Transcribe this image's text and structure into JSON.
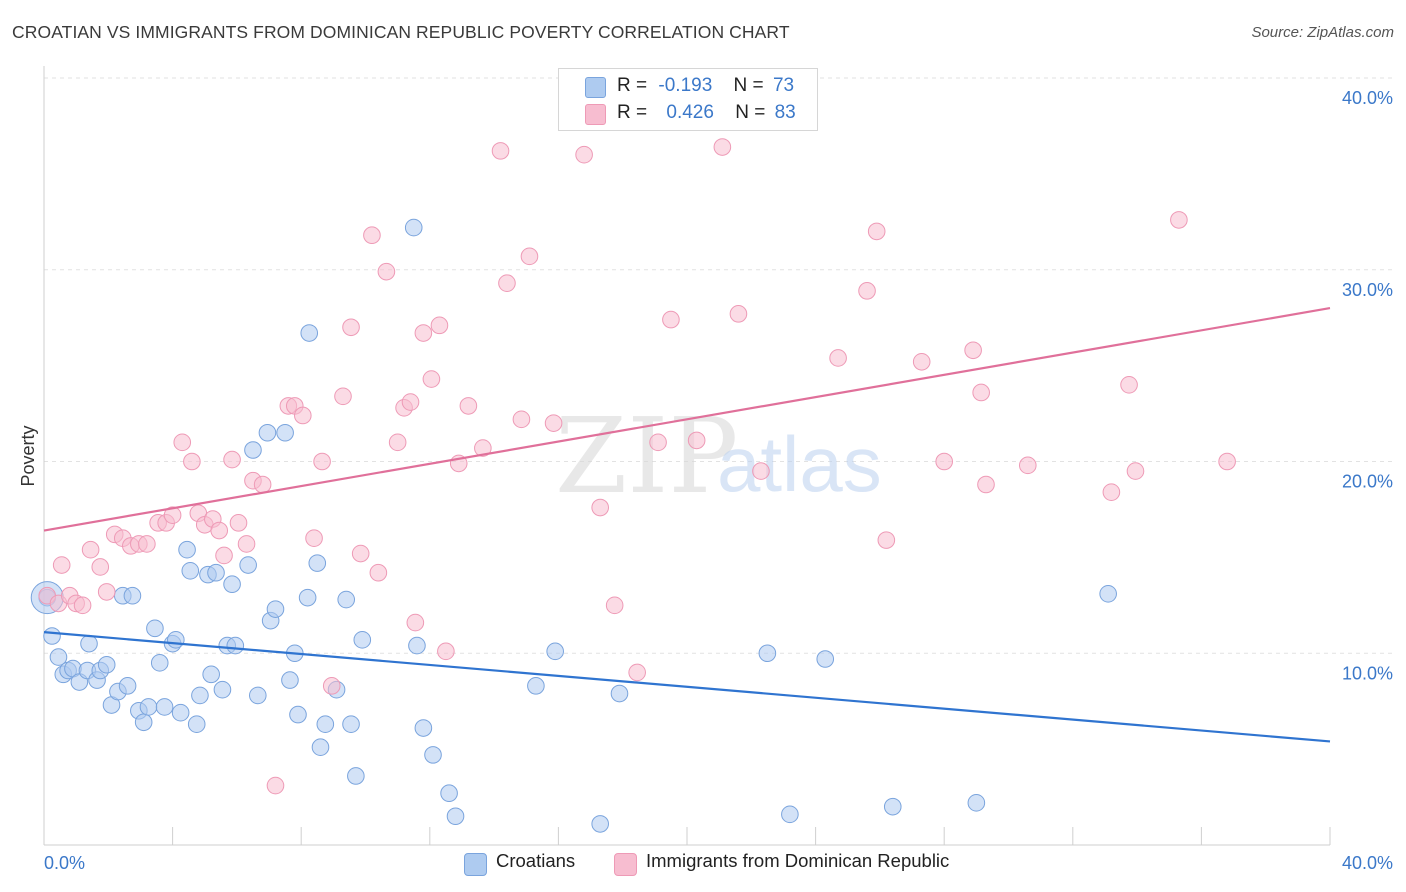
{
  "title": "CROATIAN VS IMMIGRANTS FROM DOMINICAN REPUBLIC POVERTY CORRELATION CHART",
  "source": "Source: ZipAtlas.com",
  "watermark": {
    "zip": "ZIP",
    "atlas": "atlas"
  },
  "legend": {
    "rows": [
      {
        "r_label": "R =",
        "r_value": "-0.193",
        "n_label": "N =",
        "n_value": "73"
      },
      {
        "r_label": "R =",
        "r_value": "0.426",
        "n_label": "N =",
        "n_value": "83"
      }
    ]
  },
  "bottom_legend": {
    "series1": "Croatians",
    "series2": "Immigrants from Dominican Republic"
  },
  "colors": {
    "blue_fill": "#aecbf0",
    "blue_stroke": "#7aa4dd",
    "blue_line": "#2f74d0",
    "pink_fill": "#f7bdd0",
    "pink_stroke": "#ee9ab6",
    "pink_line": "#e0709a",
    "axis_text": "#3b78c9",
    "grid": "#e2e2e2"
  },
  "chart_data": {
    "type": "scatter",
    "title": "CROATIAN VS IMMIGRANTS FROM DOMINICAN REPUBLIC POVERTY CORRELATION CHART",
    "xlabel": "",
    "ylabel": "Poverty",
    "xlim": [
      0,
      40
    ],
    "ylim": [
      0,
      40
    ],
    "x_tick_labels": [
      "0.0%",
      "40.0%"
    ],
    "y_ticks": [
      10,
      20,
      30,
      40
    ],
    "y_tick_labels": [
      "10.0%",
      "20.0%",
      "30.0%",
      "40.0%"
    ],
    "grid": "horizontal dashed",
    "legend_position": "top-center",
    "series": [
      {
        "name": "Croatians",
        "r": -0.193,
        "n": 73,
        "trend": {
          "x": [
            0,
            40
          ],
          "y": [
            11.1,
            5.4
          ]
        },
        "points": [
          [
            0.1,
            12.9
          ],
          [
            0.25,
            10.9
          ],
          [
            0.45,
            9.8
          ],
          [
            0.6,
            8.9
          ],
          [
            0.75,
            9.1
          ],
          [
            0.9,
            9.2
          ],
          [
            1.1,
            8.5
          ],
          [
            1.35,
            9.1
          ],
          [
            1.4,
            10.5
          ],
          [
            1.65,
            8.6
          ],
          [
            1.75,
            9.1
          ],
          [
            1.95,
            9.4
          ],
          [
            2.1,
            7.3
          ],
          [
            2.3,
            8.0
          ],
          [
            2.45,
            13.0
          ],
          [
            2.6,
            8.3
          ],
          [
            2.75,
            13.0
          ],
          [
            2.95,
            7.0
          ],
          [
            3.1,
            6.4
          ],
          [
            3.25,
            7.2
          ],
          [
            3.45,
            11.3
          ],
          [
            3.6,
            9.5
          ],
          [
            3.75,
            7.2
          ],
          [
            4.0,
            10.5
          ],
          [
            4.1,
            10.7
          ],
          [
            4.25,
            6.9
          ],
          [
            4.45,
            15.4
          ],
          [
            4.55,
            14.3
          ],
          [
            4.75,
            6.3
          ],
          [
            4.85,
            7.8
          ],
          [
            5.1,
            14.1
          ],
          [
            5.2,
            8.9
          ],
          [
            5.35,
            14.2
          ],
          [
            5.55,
            8.1
          ],
          [
            5.7,
            10.4
          ],
          [
            5.85,
            13.6
          ],
          [
            5.95,
            10.4
          ],
          [
            6.35,
            14.6
          ],
          [
            6.5,
            20.6
          ],
          [
            6.65,
            7.8
          ],
          [
            6.95,
            21.5
          ],
          [
            7.05,
            11.7
          ],
          [
            7.2,
            12.3
          ],
          [
            7.5,
            21.5
          ],
          [
            7.65,
            8.6
          ],
          [
            7.8,
            10.0
          ],
          [
            7.9,
            6.8
          ],
          [
            8.2,
            12.9
          ],
          [
            8.25,
            26.7
          ],
          [
            8.5,
            14.7
          ],
          [
            8.6,
            5.1
          ],
          [
            8.75,
            6.3
          ],
          [
            9.1,
            8.1
          ],
          [
            9.4,
            12.8
          ],
          [
            9.55,
            6.3
          ],
          [
            9.7,
            3.6
          ],
          [
            9.9,
            10.7
          ],
          [
            11.5,
            32.2
          ],
          [
            11.6,
            10.4
          ],
          [
            11.8,
            6.1
          ],
          [
            12.1,
            4.7
          ],
          [
            12.6,
            2.7
          ],
          [
            12.8,
            1.5
          ],
          [
            15.3,
            8.3
          ],
          [
            15.9,
            10.1
          ],
          [
            17.3,
            1.1
          ],
          [
            17.9,
            7.9
          ],
          [
            22.5,
            10.0
          ],
          [
            23.2,
            1.6
          ],
          [
            24.3,
            9.7
          ],
          [
            26.4,
            2.0
          ],
          [
            29.0,
            2.2
          ],
          [
            33.1,
            13.1
          ]
        ]
      },
      {
        "name": "Immigrants from Dominican Republic",
        "r": 0.426,
        "n": 83,
        "trend": {
          "x": [
            0,
            40
          ],
          "y": [
            16.4,
            28.0
          ]
        },
        "points": [
          [
            0.1,
            13.0
          ],
          [
            0.45,
            12.6
          ],
          [
            0.8,
            13.0
          ],
          [
            1.0,
            12.6
          ],
          [
            1.2,
            12.5
          ],
          [
            1.45,
            15.4
          ],
          [
            1.75,
            14.5
          ],
          [
            1.95,
            13.2
          ],
          [
            2.2,
            16.2
          ],
          [
            2.45,
            16.0
          ],
          [
            2.7,
            15.6
          ],
          [
            2.95,
            15.7
          ],
          [
            3.2,
            15.7
          ],
          [
            3.55,
            16.8
          ],
          [
            3.8,
            16.8
          ],
          [
            4.0,
            17.2
          ],
          [
            4.3,
            21.0
          ],
          [
            4.6,
            20.0
          ],
          [
            4.8,
            17.3
          ],
          [
            5.0,
            16.7
          ],
          [
            5.25,
            17.0
          ],
          [
            5.45,
            16.4
          ],
          [
            5.6,
            15.1
          ],
          [
            5.85,
            20.1
          ],
          [
            6.05,
            16.8
          ],
          [
            6.3,
            15.7
          ],
          [
            6.5,
            19.0
          ],
          [
            6.8,
            18.8
          ],
          [
            7.2,
            3.1
          ],
          [
            7.6,
            22.9
          ],
          [
            7.8,
            22.9
          ],
          [
            8.05,
            22.4
          ],
          [
            8.4,
            16.0
          ],
          [
            8.65,
            20.0
          ],
          [
            8.95,
            8.3
          ],
          [
            9.3,
            23.4
          ],
          [
            9.55,
            27.0
          ],
          [
            9.85,
            15.2
          ],
          [
            10.2,
            31.8
          ],
          [
            10.4,
            14.2
          ],
          [
            10.65,
            29.9
          ],
          [
            11.0,
            21.0
          ],
          [
            11.2,
            22.8
          ],
          [
            11.4,
            23.1
          ],
          [
            11.55,
            11.6
          ],
          [
            11.8,
            26.7
          ],
          [
            12.05,
            24.3
          ],
          [
            12.3,
            27.1
          ],
          [
            12.5,
            10.1
          ],
          [
            12.9,
            19.9
          ],
          [
            13.2,
            22.9
          ],
          [
            13.65,
            20.7
          ],
          [
            14.2,
            36.2
          ],
          [
            14.4,
            29.3
          ],
          [
            14.85,
            22.2
          ],
          [
            15.1,
            30.7
          ],
          [
            15.85,
            22.0
          ],
          [
            16.8,
            36.0
          ],
          [
            17.3,
            17.6
          ],
          [
            17.75,
            12.5
          ],
          [
            18.45,
            9.0
          ],
          [
            19.1,
            21.0
          ],
          [
            19.5,
            27.4
          ],
          [
            20.3,
            21.1
          ],
          [
            21.1,
            36.4
          ],
          [
            21.6,
            27.7
          ],
          [
            22.3,
            19.5
          ],
          [
            24.7,
            25.4
          ],
          [
            25.6,
            28.9
          ],
          [
            25.9,
            32.0
          ],
          [
            26.2,
            15.9
          ],
          [
            27.3,
            25.2
          ],
          [
            28.0,
            20.0
          ],
          [
            28.9,
            25.8
          ],
          [
            29.15,
            23.6
          ],
          [
            29.3,
            18.8
          ],
          [
            30.6,
            19.8
          ],
          [
            33.2,
            18.4
          ],
          [
            33.75,
            24.0
          ],
          [
            33.95,
            19.5
          ],
          [
            35.3,
            32.6
          ],
          [
            36.8,
            20.0
          ],
          [
            0.55,
            14.6
          ]
        ]
      }
    ]
  }
}
